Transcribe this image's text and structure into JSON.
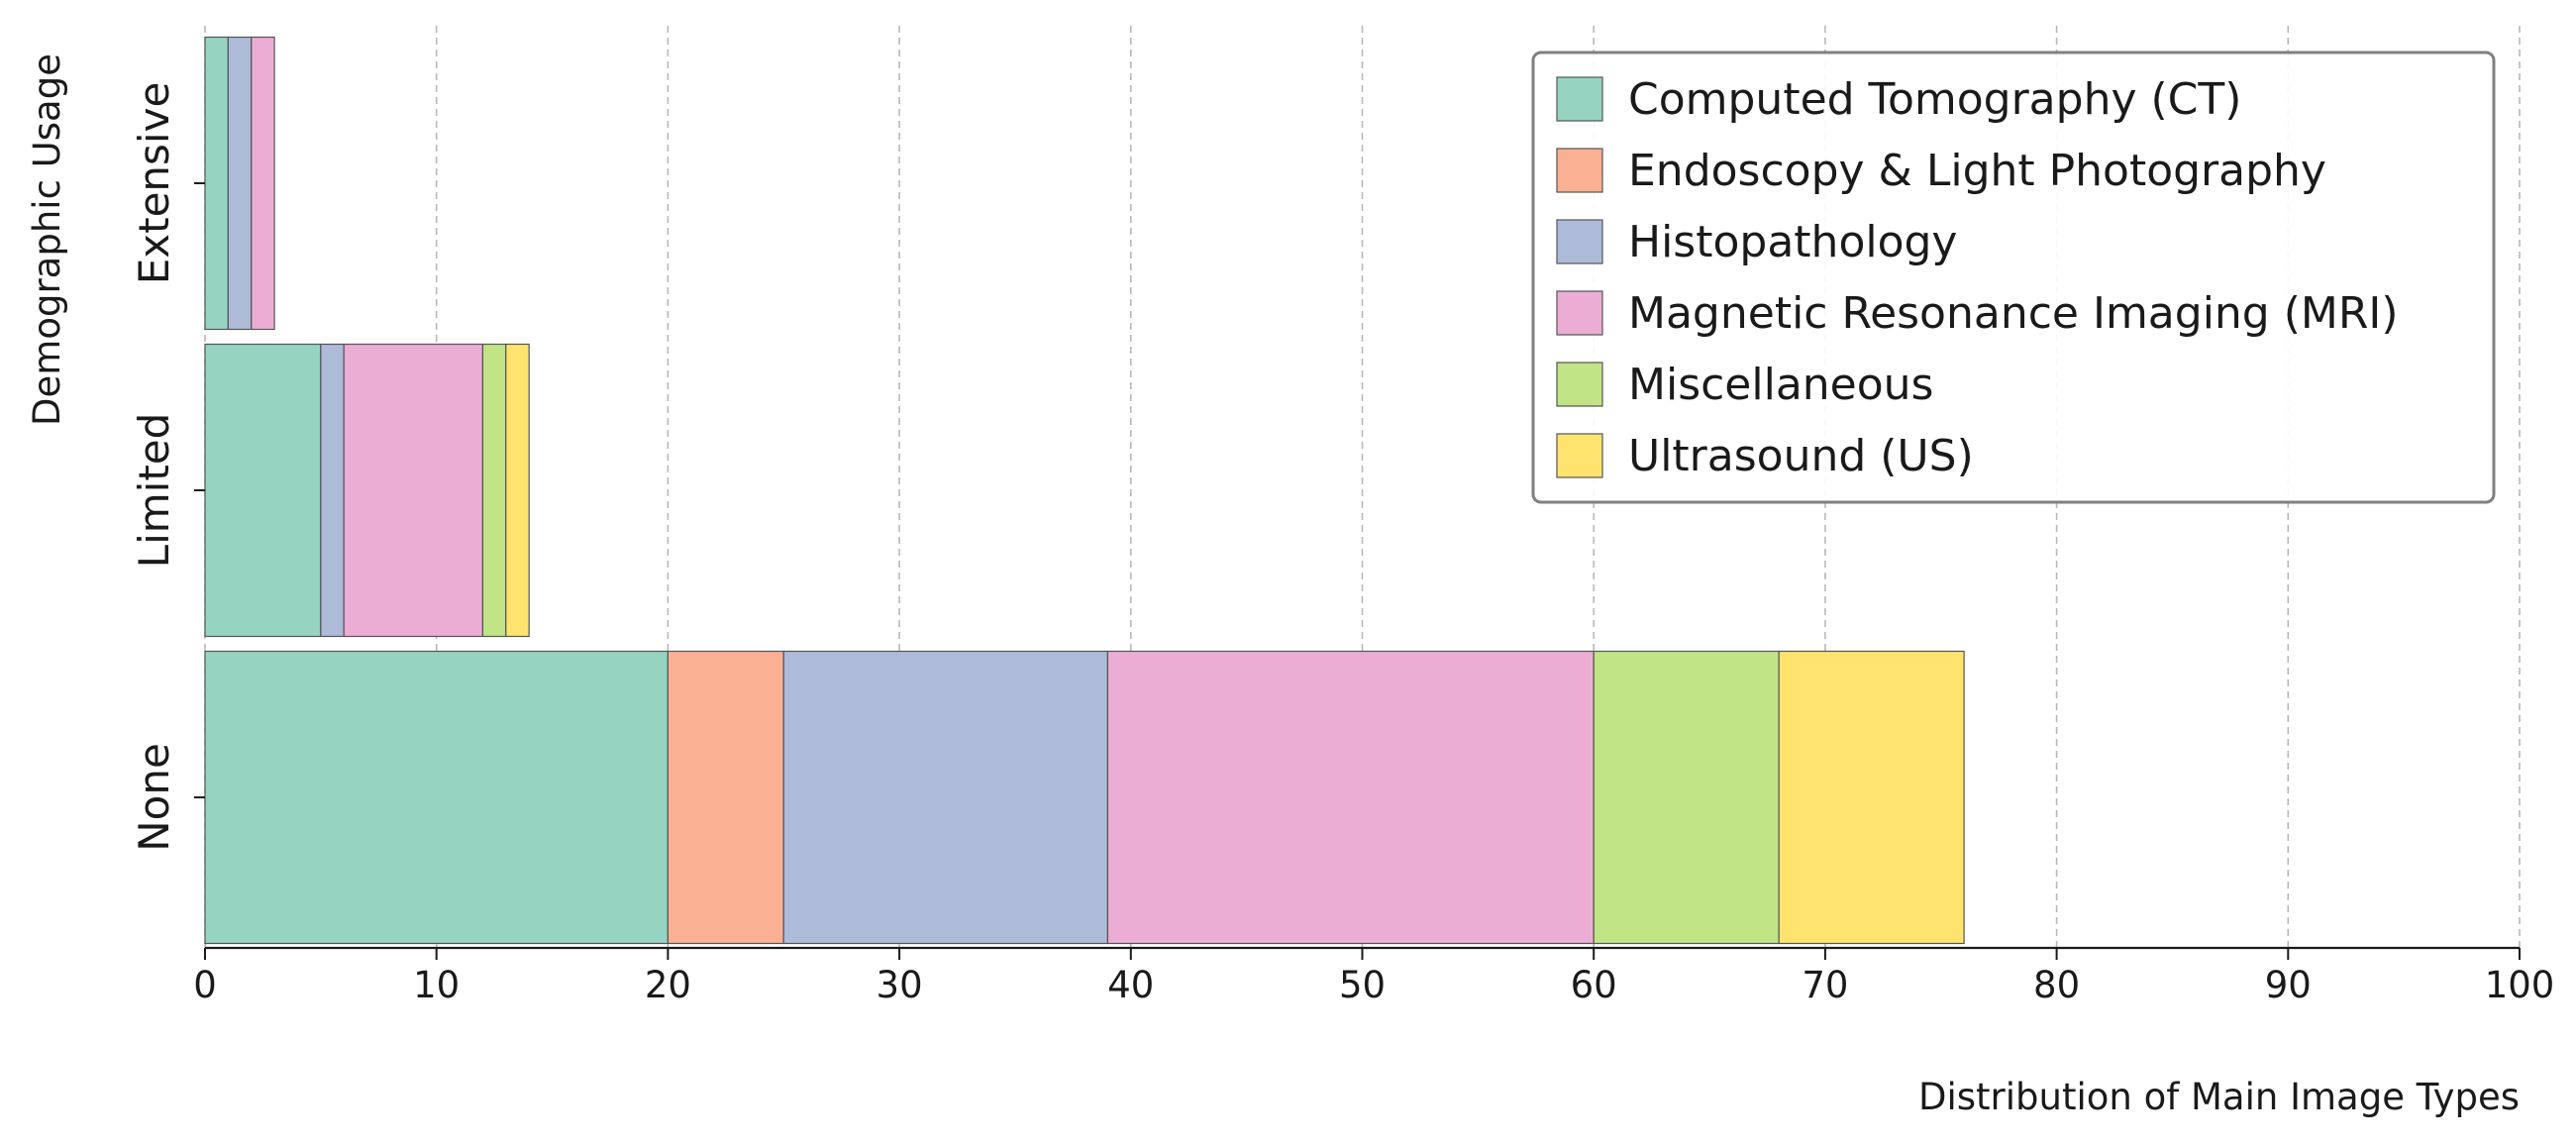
{
  "chart_data": {
    "type": "bar",
    "orientation": "horizontal",
    "stacked": true,
    "categories": [
      "None",
      "Limited",
      "Extensive"
    ],
    "series": [
      {
        "name": "Computed Tomography (CT)",
        "values": [
          20,
          5,
          1
        ],
        "color": "#96d4c1"
      },
      {
        "name": "Endoscopy & Light Photography",
        "values": [
          5,
          0,
          0
        ],
        "color": "#fab093"
      },
      {
        "name": "Histopathology",
        "values": [
          14,
          1,
          1
        ],
        "color": "#adbbd9"
      },
      {
        "name": "Magnetic Resonance Imaging (MRI)",
        "values": [
          21,
          6,
          1
        ],
        "color": "#ebadd4"
      },
      {
        "name": "Miscellaneous",
        "values": [
          8,
          1,
          0
        ],
        "color": "#c1e486"
      },
      {
        "name": "Ultrasound (US)",
        "values": [
          8,
          1,
          0
        ],
        "color": "#fee46e"
      }
    ],
    "xlabel": "Distribution of Main Image Types",
    "ylabel": "Demographic Usage",
    "xlim": [
      0,
      100
    ],
    "xticks": [
      0,
      10,
      20,
      30,
      40,
      50,
      60,
      70,
      80,
      90,
      100
    ],
    "grid": "vertical dashed",
    "legend_position": "top-right"
  }
}
